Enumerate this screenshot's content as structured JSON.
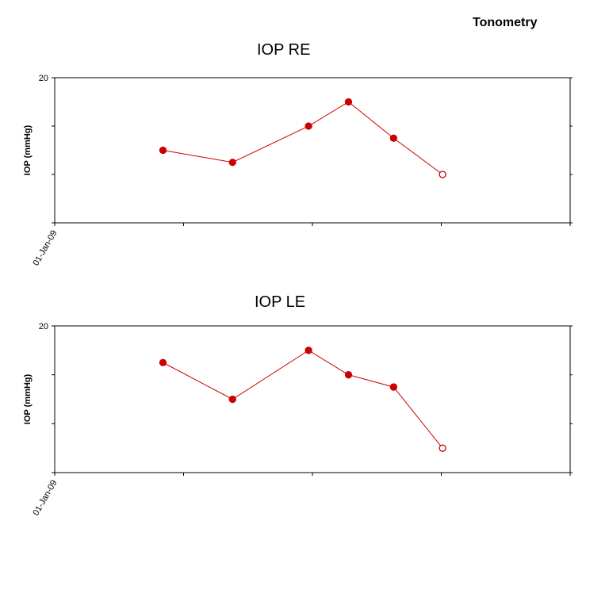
{
  "header": {
    "title": "Tonometry"
  },
  "colors": {
    "series": "#cc0000",
    "axis": "#000000"
  },
  "chart_data": [
    {
      "type": "line",
      "title": "IOP RE",
      "ylabel": "IOP (mmHg)",
      "ylim": [
        8,
        20
      ],
      "yticks": [
        {
          "value": 20,
          "label": "20"
        },
        {
          "value": 16,
          "label": ""
        },
        {
          "value": 12,
          "label": ""
        },
        {
          "value": 8,
          "label": ""
        }
      ],
      "xticks": [
        {
          "index": 0,
          "label": "01-Jan-09"
        },
        {
          "index": 1,
          "label": ""
        },
        {
          "index": 2,
          "label": ""
        },
        {
          "index": 3,
          "label": ""
        },
        {
          "index": 4,
          "label": ""
        }
      ],
      "series": [
        {
          "points": [
            {
              "x": 0.84,
              "y": 14.0,
              "filled": true
            },
            {
              "x": 1.38,
              "y": 13.0,
              "filled": true
            },
            {
              "x": 1.97,
              "y": 16.0,
              "filled": true
            },
            {
              "x": 2.28,
              "y": 18.0,
              "filled": true
            },
            {
              "x": 2.63,
              "y": 15.0,
              "filled": true
            },
            {
              "x": 3.01,
              "y": 12.0,
              "filled": false
            }
          ]
        }
      ]
    },
    {
      "type": "line",
      "title": "IOP LE",
      "ylabel": "IOP (mmHg)",
      "ylim": [
        8,
        20
      ],
      "yticks": [
        {
          "value": 20,
          "label": "20"
        },
        {
          "value": 16,
          "label": ""
        },
        {
          "value": 12,
          "label": ""
        },
        {
          "value": 8,
          "label": ""
        }
      ],
      "xticks": [
        {
          "index": 0,
          "label": "01-Jan-09"
        },
        {
          "index": 1,
          "label": ""
        },
        {
          "index": 2,
          "label": ""
        },
        {
          "index": 3,
          "label": ""
        },
        {
          "index": 4,
          "label": ""
        }
      ],
      "series": [
        {
          "points": [
            {
              "x": 0.84,
              "y": 17.0,
              "filled": true
            },
            {
              "x": 1.38,
              "y": 14.0,
              "filled": true
            },
            {
              "x": 1.97,
              "y": 18.0,
              "filled": true
            },
            {
              "x": 2.28,
              "y": 16.0,
              "filled": true
            },
            {
              "x": 2.63,
              "y": 15.0,
              "filled": true
            },
            {
              "x": 3.01,
              "y": 10.0,
              "filled": false
            }
          ]
        }
      ]
    }
  ]
}
